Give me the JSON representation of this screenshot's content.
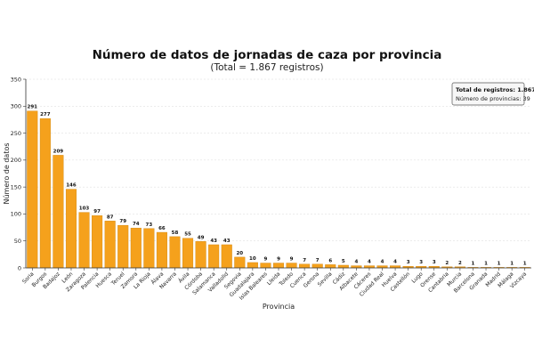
{
  "chart_data": {
    "type": "bar",
    "title": "Número de datos de jornadas de caza por provincia",
    "subtitle": "(Total = 1.867 registros)",
    "xlabel": "Provincia",
    "ylabel": "Número de datos",
    "ylim": [
      0,
      350
    ],
    "yticks": [
      0,
      50,
      100,
      150,
      200,
      250,
      300,
      350
    ],
    "grid": "horizontal",
    "bar_color": "#f5a11c",
    "bar_edge_color": "#d0850e",
    "categories": [
      "Soria",
      "Burgos",
      "Badajoz",
      "León",
      "Zaragoza",
      "Palencia",
      "Huesca",
      "Teruel",
      "Zamora",
      "La Rioja",
      "Álava",
      "Navarra",
      "Ávila",
      "Córdoba",
      "Salamanca",
      "Valladolid",
      "Segovia",
      "Guadalajara",
      "Islas Baleares",
      "Lleida",
      "Toledo",
      "Cuenca",
      "Gerona",
      "Sevilla",
      "Cádiz",
      "Albacete",
      "Cáceres",
      "Ciudad Real",
      "Huelva",
      "Castellón",
      "Lugo",
      "Orense",
      "Cantabria",
      "Murcia",
      "Barcelona",
      "Granada",
      "Madrid",
      "Málaga",
      "Vizcaya"
    ],
    "values": [
      291,
      277,
      209,
      146,
      103,
      97,
      87,
      79,
      74,
      73,
      66,
      58,
      55,
      49,
      43,
      43,
      20,
      10,
      9,
      9,
      9,
      7,
      7,
      6,
      5,
      4,
      4,
      4,
      4,
      3,
      3,
      3,
      2,
      2,
      1,
      1,
      1,
      1,
      1
    ],
    "info_box": {
      "line1": "Total de registros: 1.867",
      "line2": "Número de provincias: 39",
      "placement": "top-right"
    }
  }
}
